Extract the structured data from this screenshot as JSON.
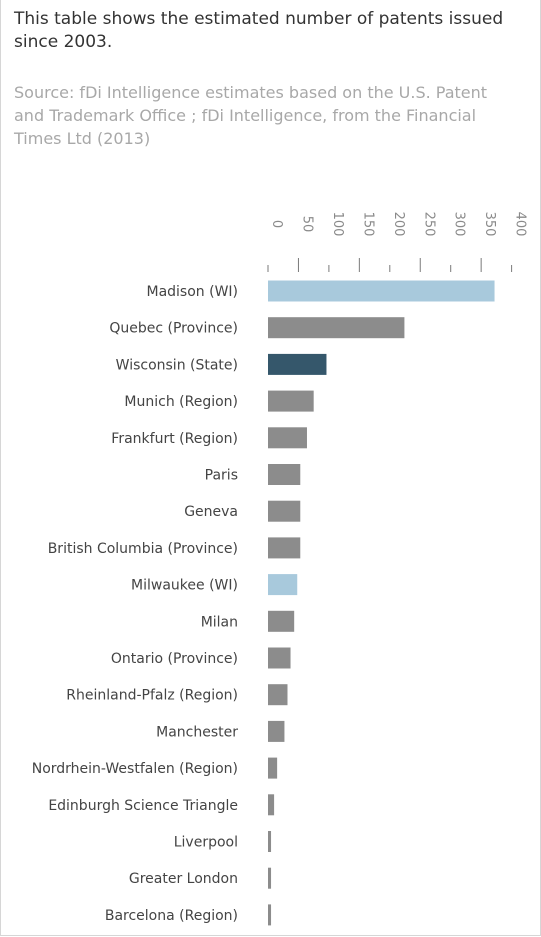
{
  "description": "This table shows the estimated number of patents issued since 2003.",
  "source": "Source: fDi Intelligence estimates based on the U.S. Patent and Trademark Office ; fDi Intelligence, from the Financial Times Ltd (2013)",
  "colors": {
    "highlight_light": "#a8c9dc",
    "highlight_dark": "#35576b",
    "default": "#8c8c8c",
    "label_text": "#444444",
    "tick_text": "#8a8a8a"
  },
  "chart_data": {
    "type": "bar",
    "orientation": "horizontal",
    "title": "",
    "xlabel": "",
    "ylabel": "",
    "xlim": [
      0,
      400
    ],
    "ticks": [
      0,
      50,
      100,
      150,
      200,
      250,
      300,
      350,
      400
    ],
    "grid": false,
    "categories": [
      "Madison (WI)",
      "Quebec (Province)",
      "Wisconsin (State)",
      "Munich (Region)",
      "Frankfurt (Region)",
      "Paris",
      "Geneva",
      "British Columbia (Province)",
      "Milwaukee (WI)",
      "Milan",
      "Ontario (Province)",
      "Rheinland-Pfalz (Region)",
      "Manchester",
      "Nordrhein-Westfalen (Region)",
      "Edinburgh Science Triangle",
      "Liverpool",
      "Greater London",
      "Barcelona (Region)"
    ],
    "values": [
      372,
      224,
      96,
      75,
      64,
      53,
      53,
      53,
      48,
      43,
      37,
      32,
      27,
      15,
      10,
      5,
      5,
      5
    ],
    "bar_colors": [
      "#a8c9dc",
      "#8c8c8c",
      "#35576b",
      "#8c8c8c",
      "#8c8c8c",
      "#8c8c8c",
      "#8c8c8c",
      "#8c8c8c",
      "#a8c9dc",
      "#8c8c8c",
      "#8c8c8c",
      "#8c8c8c",
      "#8c8c8c",
      "#8c8c8c",
      "#8c8c8c",
      "#8c8c8c",
      "#8c8c8c",
      "#8c8c8c"
    ]
  }
}
